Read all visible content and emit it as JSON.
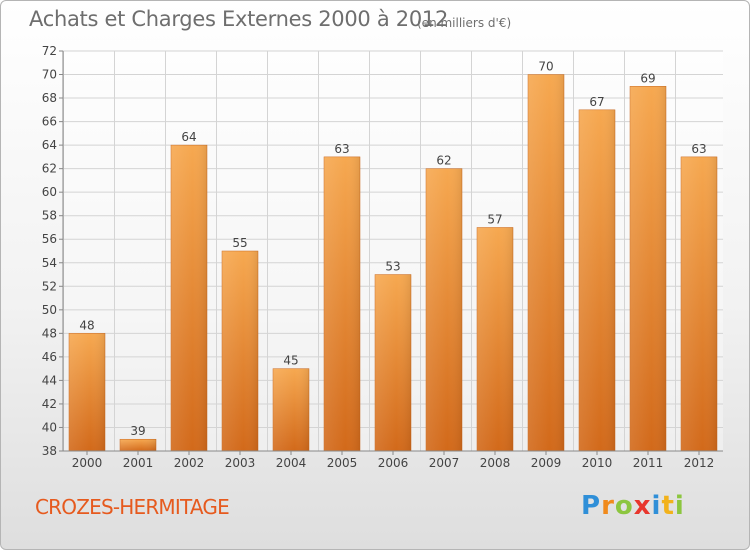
{
  "header": {
    "title": "Achats et Charges Externes 2000 à 2012",
    "subtitle": "(en milliers d'€)"
  },
  "footer": {
    "place": "CROZES-HERMITAGE",
    "logo_text": "Proxiti",
    "logo_letters": [
      {
        "char": "P",
        "color": "#2f8fd8"
      },
      {
        "char": "r",
        "color": "#f08a1c"
      },
      {
        "char": "o",
        "color": "#8cc63f"
      },
      {
        "char": "x",
        "color": "#e8362d"
      },
      {
        "char": "i",
        "color": "#2f8fd8"
      },
      {
        "char": "t",
        "color": "#f2b21b"
      },
      {
        "char": "i",
        "color": "#8cc63f"
      }
    ]
  },
  "colors": {
    "bar_top": "#f6a850",
    "bar_bottom": "#d2691a",
    "gridline": "#d4d4d4",
    "axis_text": "#444444",
    "place": "#e65a1e"
  },
  "chart_data": {
    "type": "bar",
    "title": "Achats et Charges Externes 2000 à 2012",
    "subtitle": "(en milliers d'€)",
    "xlabel": "",
    "ylabel": "",
    "categories": [
      "2000",
      "2001",
      "2002",
      "2003",
      "2004",
      "2005",
      "2006",
      "2007",
      "2008",
      "2009",
      "2010",
      "2011",
      "2012"
    ],
    "values": [
      48,
      39,
      64,
      55,
      45,
      63,
      53,
      62,
      57,
      70,
      67,
      69,
      63
    ],
    "ylim": [
      38,
      72
    ],
    "yticks": [
      38,
      40,
      42,
      44,
      46,
      48,
      50,
      52,
      54,
      56,
      58,
      60,
      62,
      64,
      66,
      68,
      70,
      72
    ],
    "grid": true,
    "data_labels": true
  }
}
